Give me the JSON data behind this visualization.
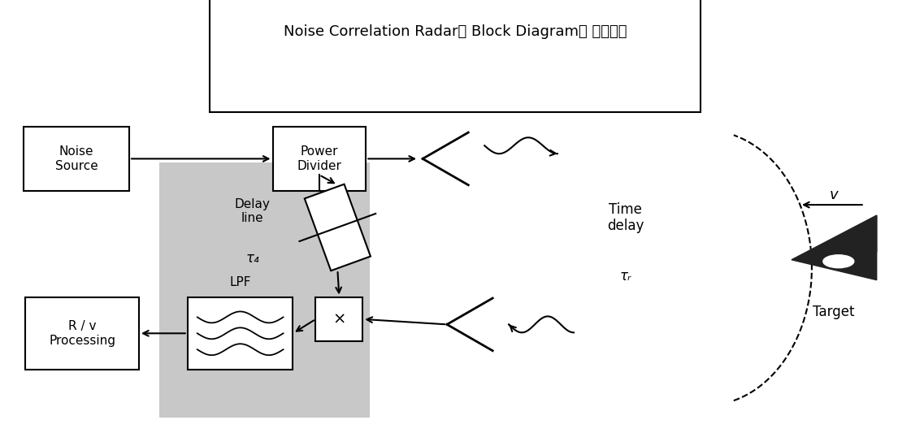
{
  "title": "Noise Correlation Radar의 Block Diagram과 동작원리",
  "bg_color": "#ffffff",
  "gray_bg": "#c8c8c8",
  "tau_r": "τᵣ",
  "tau_d": "τ₄"
}
